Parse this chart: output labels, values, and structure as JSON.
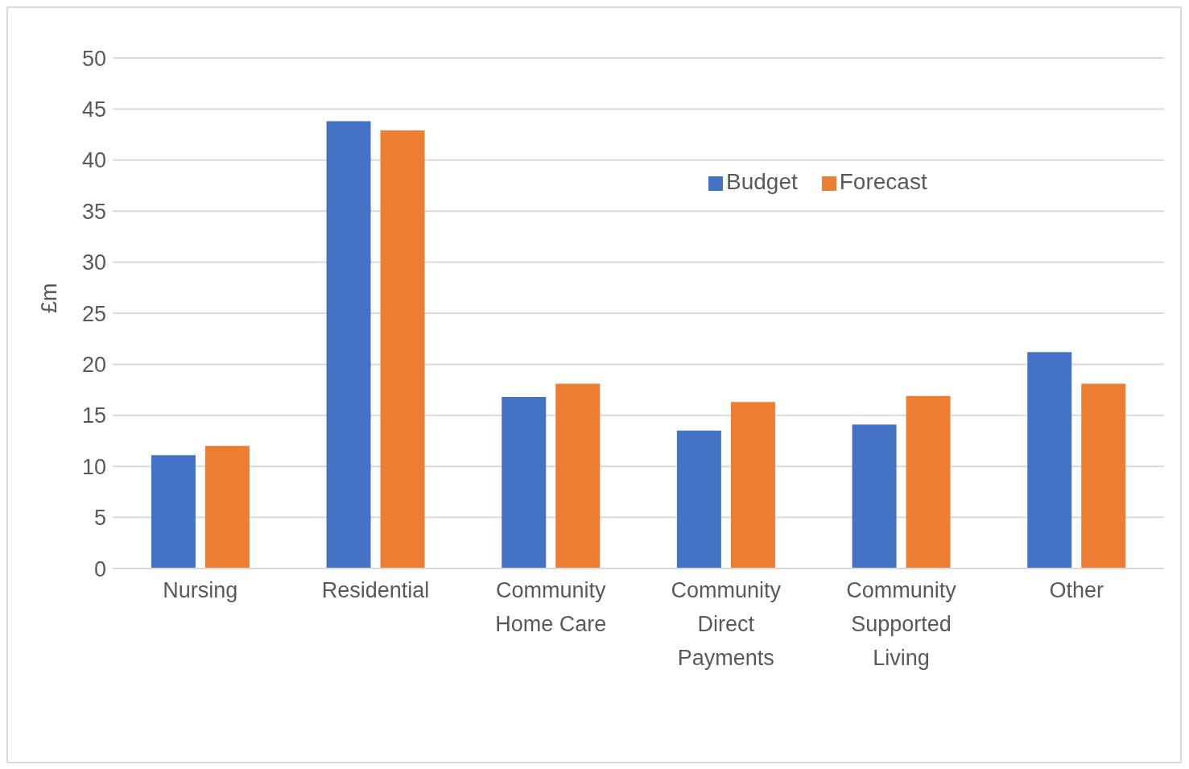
{
  "chart_data": {
    "type": "bar",
    "ylabel": "£m",
    "categories": [
      "Nursing",
      "Residential",
      "Community Home Care",
      "Community Direct Payments",
      "Community Supported Living",
      "Other"
    ],
    "series": [
      {
        "name": "Budget",
        "color": "#4472c4",
        "values": [
          11.1,
          43.8,
          16.8,
          13.5,
          14.1,
          21.2
        ]
      },
      {
        "name": "Forecast",
        "color": "#ed7d31",
        "values": [
          12.0,
          42.9,
          18.1,
          16.3,
          16.9,
          18.1
        ]
      }
    ],
    "ylim": [
      0,
      50
    ],
    "yticks": [
      0,
      5,
      10,
      15,
      20,
      25,
      30,
      35,
      40,
      45,
      50
    ],
    "grid": "y",
    "legend": "top right"
  }
}
